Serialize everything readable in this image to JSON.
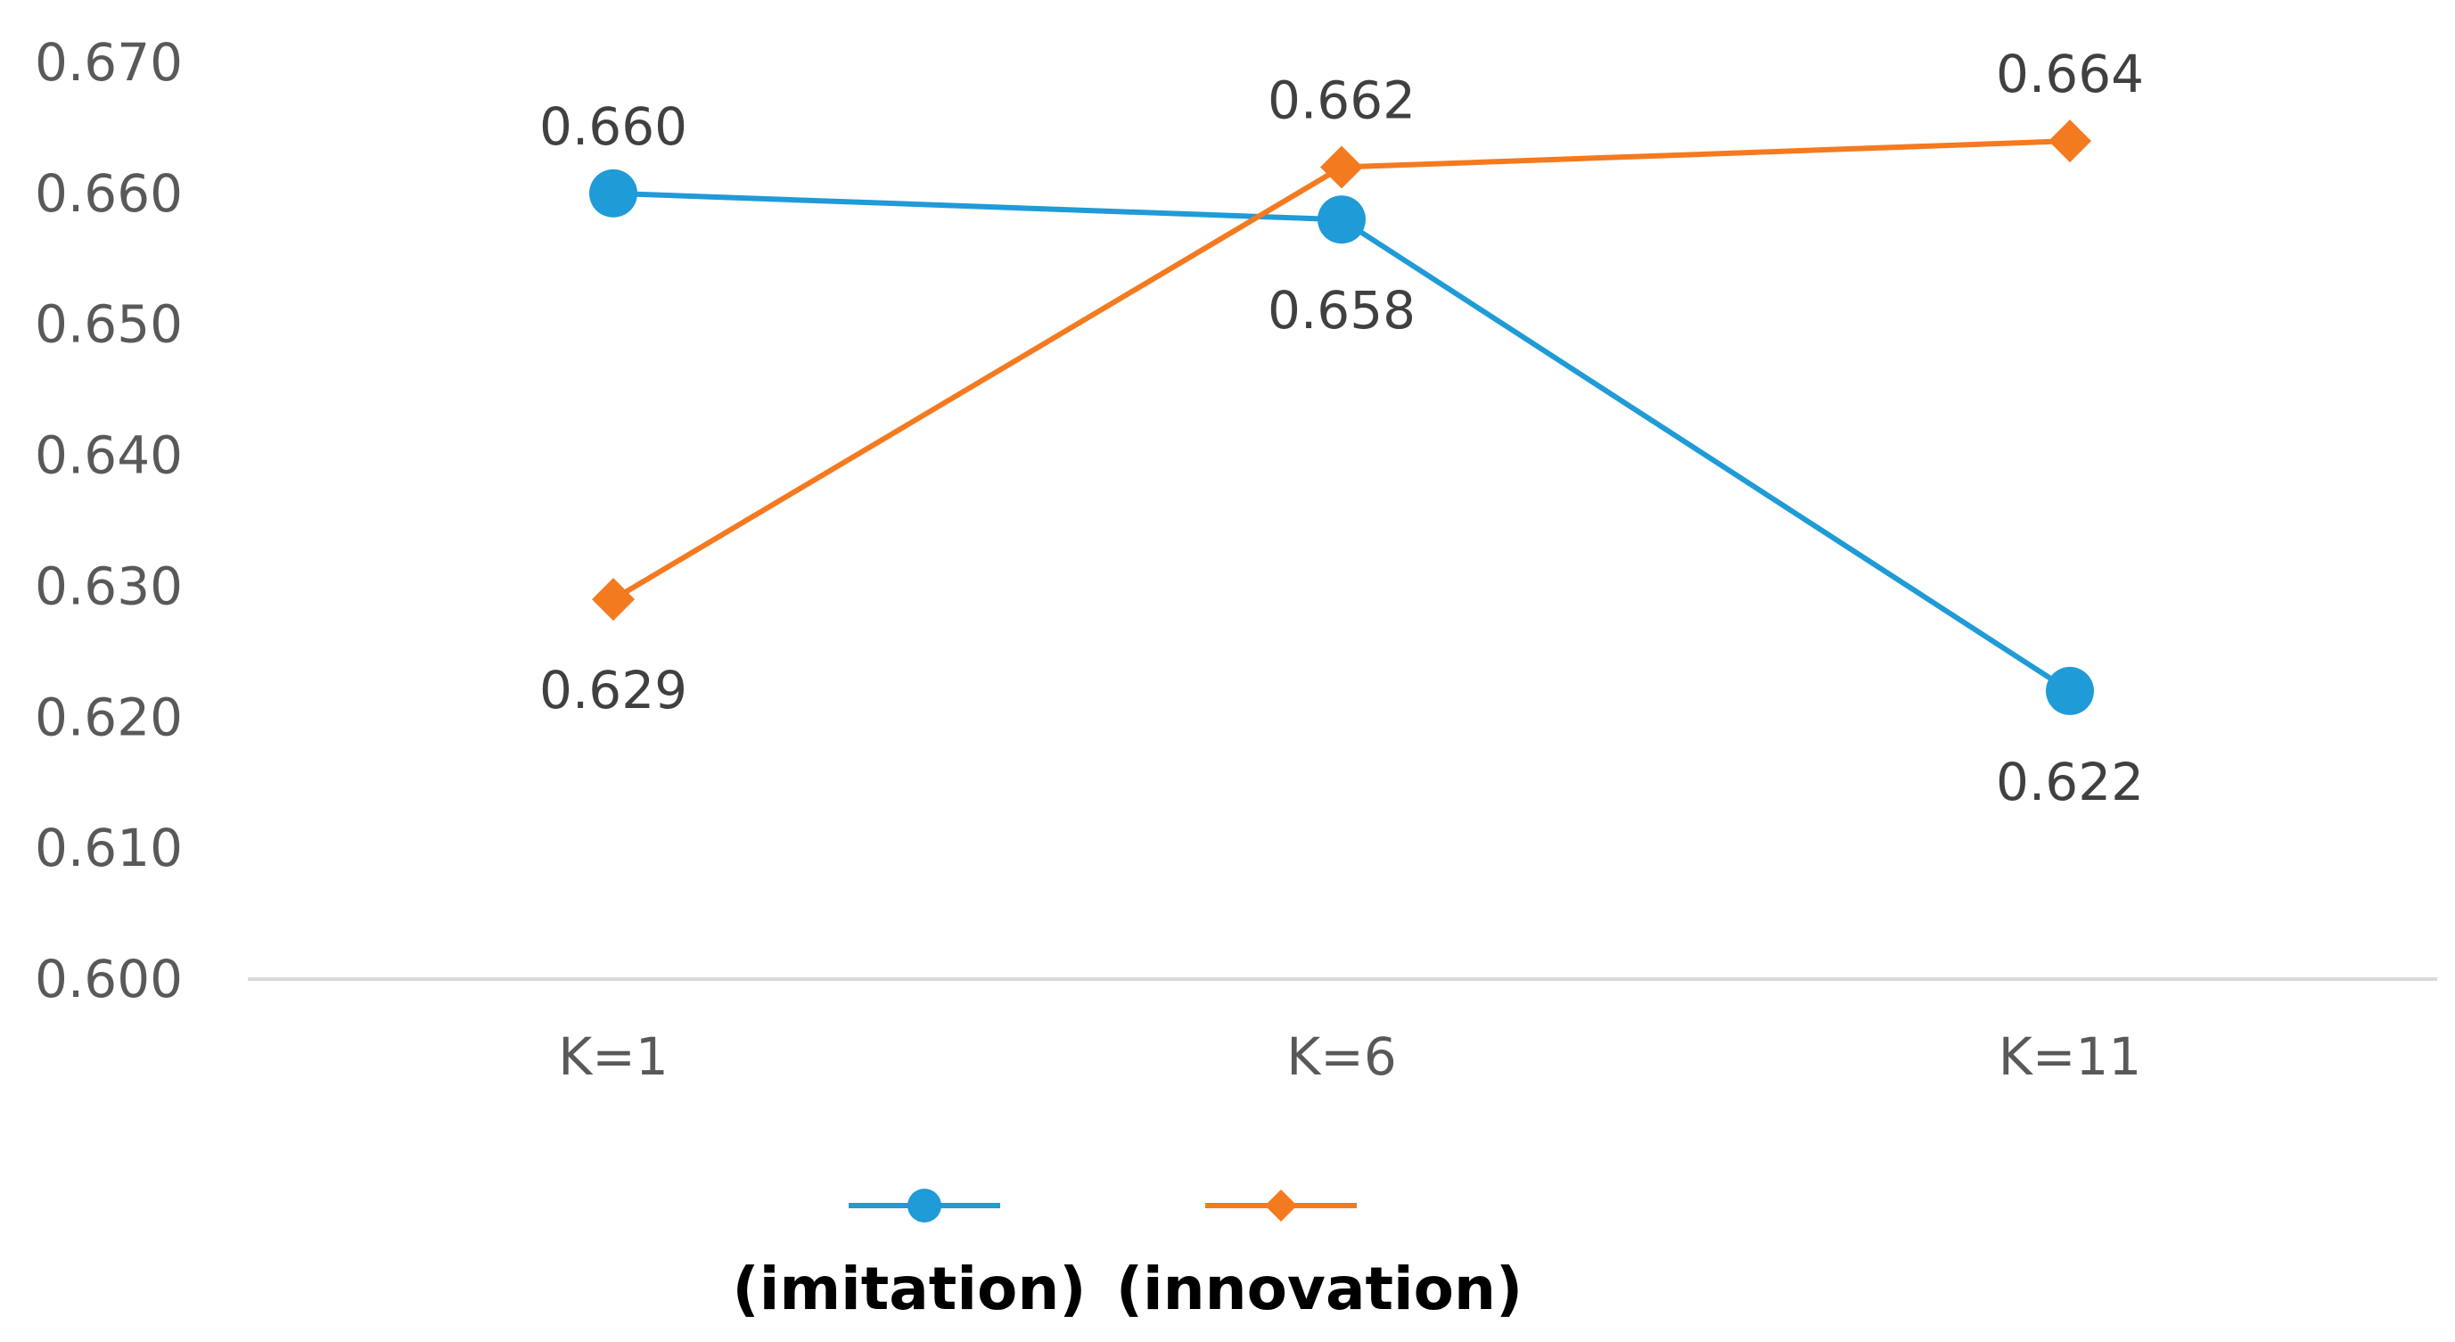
{
  "chart_data": {
    "type": "line",
    "categories": [
      "K=1",
      "K=6",
      "K=11"
    ],
    "series": [
      {
        "name": "(imitation)",
        "values": [
          0.66,
          0.658,
          0.622
        ],
        "labels": [
          "0.660",
          "0.658",
          "0.622"
        ],
        "color": "#1f9bd7",
        "marker": "circle"
      },
      {
        "name": "(innovation)",
        "values": [
          0.629,
          0.662,
          0.664
        ],
        "labels": [
          "0.629",
          "0.662",
          "0.664"
        ],
        "color": "#f47a20",
        "marker": "diamond"
      }
    ],
    "y_ticks": [
      "0.600",
      "0.610",
      "0.620",
      "0.630",
      "0.640",
      "0.650",
      "0.660",
      "0.670"
    ],
    "ylim": [
      0.6,
      0.67
    ],
    "grid": false,
    "legend_position": "bottom-center",
    "axis_color": "#d9d9d9"
  }
}
